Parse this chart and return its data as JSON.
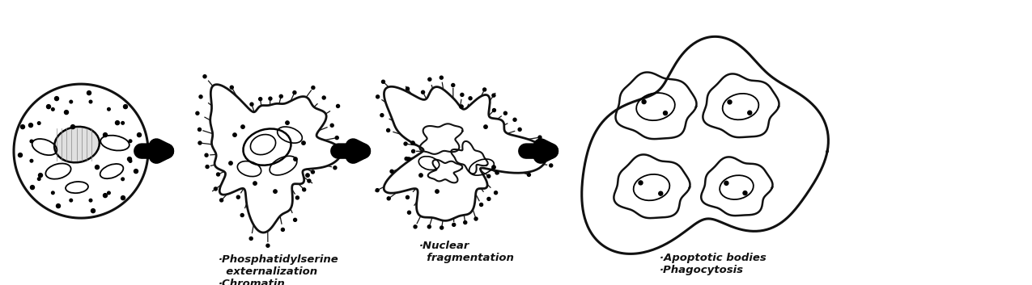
{
  "background_color": "#ffffff",
  "fig_width": 12.75,
  "fig_height": 3.53,
  "dpi": 100,
  "text_color": "#111111",
  "line_color": "#111111",
  "labels": [
    "",
    "·Phosphatidylserine\n  externalization\n·Chromatin\n  condensation",
    "·Nuclear\n  fragmentation",
    "·Apoptotic bodies\n·Phagocytosis"
  ],
  "font_size": 9.5,
  "arrow_lw": 14,
  "arrow_hw": 22
}
